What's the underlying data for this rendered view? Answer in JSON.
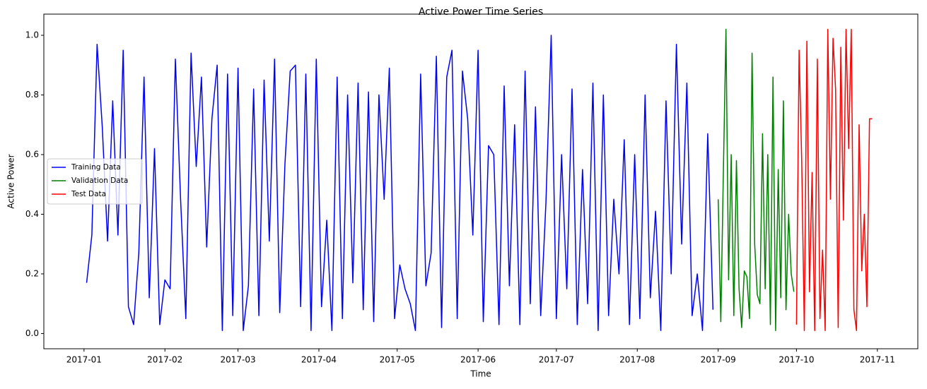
{
  "chart_data": {
    "type": "line",
    "title": "Active Power Time Series",
    "x_label": "Time",
    "y_label": "Active Power",
    "xlim": [
      -15.4,
      319.5
    ],
    "ylim": [
      -0.051,
      1.071
    ],
    "xticks": [
      {
        "value": 0,
        "label": "2017-01"
      },
      {
        "value": 31,
        "label": "2017-02"
      },
      {
        "value": 59,
        "label": "2017-03"
      },
      {
        "value": 90,
        "label": "2017-04"
      },
      {
        "value": 120,
        "label": "2017-05"
      },
      {
        "value": 151,
        "label": "2017-06"
      },
      {
        "value": 181,
        "label": "2017-07"
      },
      {
        "value": 212,
        "label": "2017-08"
      },
      {
        "value": 243,
        "label": "2017-09"
      },
      {
        "value": 273,
        "label": "2017-10"
      },
      {
        "value": 304,
        "label": "2017-11"
      }
    ],
    "yticks": [
      {
        "value": 0,
        "label": "0.0"
      },
      0.2,
      0.4,
      0.6,
      0.8,
      {
        "value": 1,
        "label": "1.0"
      }
    ],
    "grid": false,
    "legend_loc": "center left",
    "series": [
      {
        "name": "Training Data",
        "color": "#0000ff",
        "x": [
          1,
          3,
          5,
          7,
          9,
          11,
          13,
          15,
          17,
          19,
          21,
          23,
          25,
          27,
          29,
          31,
          33,
          35,
          37,
          39,
          41,
          43,
          45,
          47,
          49,
          51,
          53,
          55,
          57,
          59,
          61,
          63,
          65,
          67,
          69,
          71,
          73,
          75,
          77,
          79,
          81,
          83,
          85,
          87,
          89,
          91,
          93,
          95,
          97,
          99,
          101,
          103,
          105,
          107,
          109,
          111,
          113,
          115,
          117,
          119,
          121,
          123,
          125,
          127,
          129,
          131,
          133,
          135,
          137,
          139,
          141,
          143,
          145,
          147,
          149,
          151,
          153,
          155,
          157,
          159,
          161,
          163,
          165,
          167,
          169,
          171,
          173,
          175,
          177,
          179,
          181,
          183,
          185,
          187,
          189,
          191,
          193,
          195,
          197,
          199,
          201,
          203,
          205,
          207,
          209,
          211,
          213,
          215,
          217,
          219,
          221,
          223,
          225,
          227,
          229,
          231,
          233,
          235,
          237,
          239,
          241
        ],
        "values": [
          0.17,
          0.33,
          0.97,
          0.69,
          0.31,
          0.78,
          0.33,
          0.95,
          0.09,
          0.03,
          0.27,
          0.86,
          0.12,
          0.62,
          0.03,
          0.18,
          0.15,
          0.92,
          0.45,
          0.05,
          0.94,
          0.56,
          0.86,
          0.29,
          0.72,
          0.9,
          0.01,
          0.87,
          0.06,
          0.89,
          0.01,
          0.16,
          0.82,
          0.06,
          0.85,
          0.31,
          0.92,
          0.07,
          0.57,
          0.88,
          0.9,
          0.09,
          0.87,
          0.01,
          0.92,
          0.09,
          0.38,
          0.01,
          0.86,
          0.05,
          0.8,
          0.17,
          0.84,
          0.08,
          0.81,
          0.04,
          0.8,
          0.45,
          0.89,
          0.05,
          0.23,
          0.15,
          0.1,
          0.01,
          0.87,
          0.16,
          0.27,
          0.93,
          0.02,
          0.86,
          0.95,
          0.05,
          0.88,
          0.72,
          0.33,
          0.95,
          0.04,
          0.63,
          0.6,
          0.03,
          0.83,
          0.16,
          0.7,
          0.03,
          0.88,
          0.1,
          0.76,
          0.06,
          0.44,
          1.0,
          0.05,
          0.6,
          0.15,
          0.82,
          0.03,
          0.55,
          0.1,
          0.84,
          0.01,
          0.8,
          0.06,
          0.45,
          0.2,
          0.65,
          0.03,
          0.6,
          0.05,
          0.8,
          0.12,
          0.41,
          0.01,
          0.78,
          0.2,
          0.97,
          0.3,
          0.84,
          0.06,
          0.2,
          0.01,
          0.67,
          0.08
        ]
      },
      {
        "name": "Validation Data",
        "color": "#008000",
        "x": [
          243,
          244,
          245,
          246,
          247,
          248,
          249,
          250,
          251,
          252,
          253,
          254,
          255,
          256,
          257,
          258,
          259,
          260,
          261,
          262,
          263,
          264,
          265,
          266,
          267,
          268,
          269,
          270,
          271,
          272
        ],
        "values": [
          0.45,
          0.04,
          0.54,
          1.02,
          0.18,
          0.6,
          0.06,
          0.58,
          0.15,
          0.02,
          0.21,
          0.19,
          0.05,
          0.94,
          0.3,
          0.13,
          0.1,
          0.67,
          0.15,
          0.6,
          0.03,
          0.86,
          0.01,
          0.55,
          0.12,
          0.78,
          0.08,
          0.4,
          0.2,
          0.14
        ]
      },
      {
        "name": "Test Data",
        "color": "#ff0000",
        "x": [
          273,
          274,
          275,
          276,
          277,
          278,
          279,
          280,
          281,
          282,
          283,
          284,
          285,
          286,
          287,
          288,
          289,
          290,
          291,
          292,
          293,
          294,
          295,
          296,
          297,
          298,
          299,
          300,
          301,
          302
        ],
        "values": [
          0.03,
          0.95,
          0.58,
          0.01,
          0.98,
          0.14,
          0.54,
          0.01,
          0.92,
          0.05,
          0.28,
          0.01,
          1.02,
          0.45,
          0.99,
          0.82,
          0.02,
          0.96,
          0.38,
          1.02,
          0.62,
          1.02,
          0.08,
          0.01,
          0.7,
          0.21,
          0.4,
          0.09,
          0.72,
          0.72
        ]
      }
    ]
  }
}
